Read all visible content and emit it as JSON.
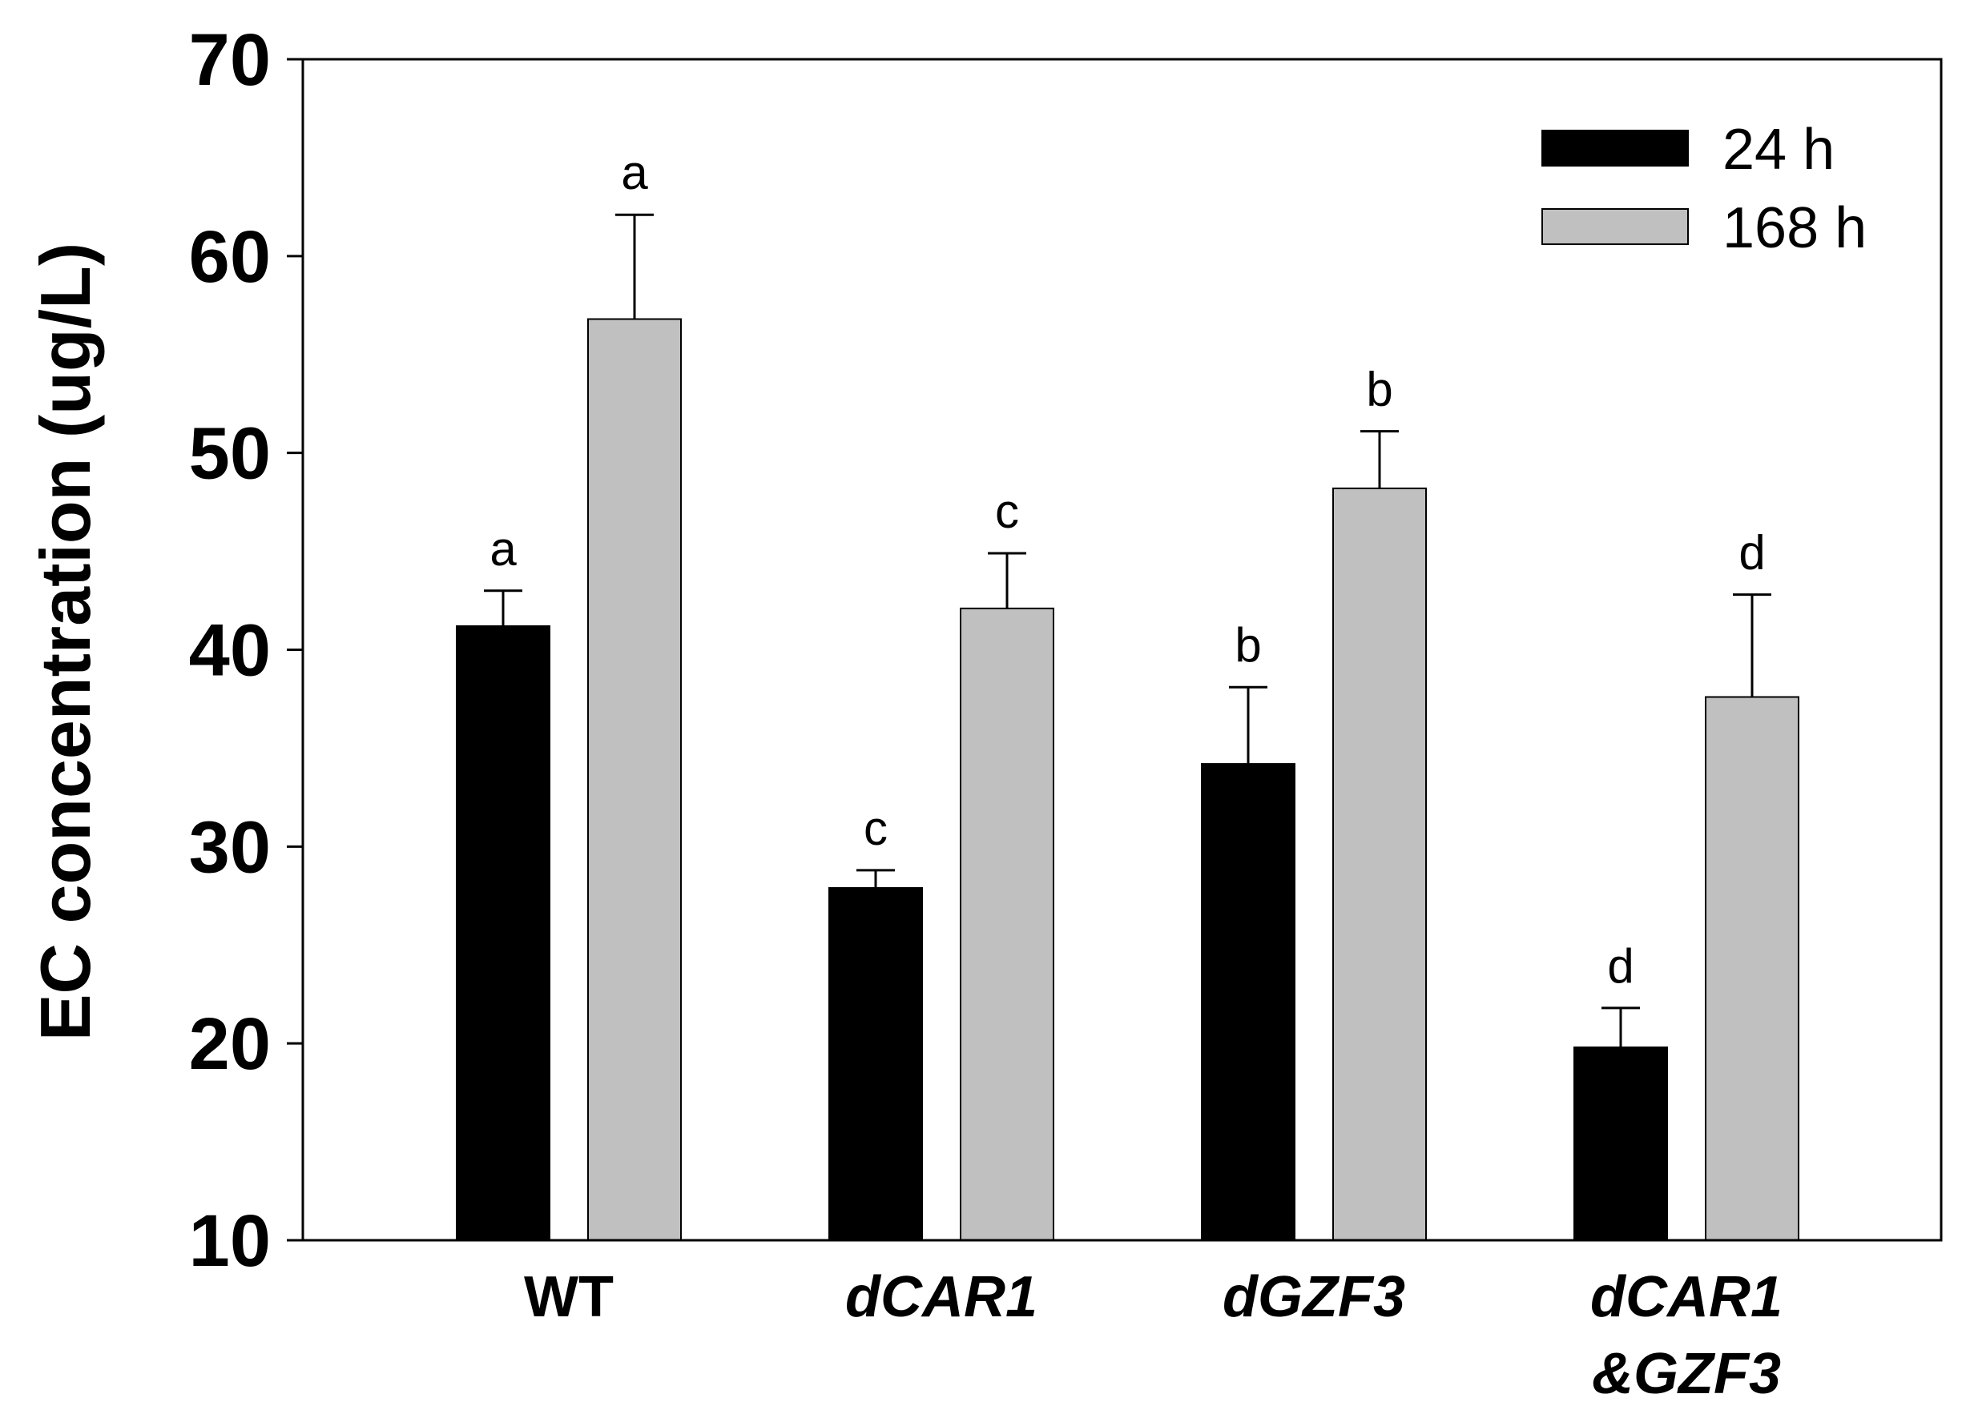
{
  "colors": {
    "series_24h": "#000000",
    "series_168h": "#c0c0c0",
    "axis": "#000000"
  },
  "chart_data": {
    "type": "bar",
    "title": "",
    "xlabel": "",
    "ylabel": "EC concentration (ug/L)",
    "ylim": [
      10,
      70
    ],
    "yticks": [
      "10",
      "20",
      "30",
      "40",
      "50",
      "60",
      "70"
    ],
    "grid": false,
    "legend_position": "top-right",
    "categories": [
      {
        "id": "wt",
        "line1": "WT",
        "line2": "",
        "italic": false
      },
      {
        "id": "dcar1",
        "line1": "dCAR1",
        "line2": "",
        "italic": true
      },
      {
        "id": "dgzf3",
        "line1": "dGZF3",
        "line2": "",
        "italic": true
      },
      {
        "id": "dcar1-gzf3",
        "line1": "dCAR1",
        "line2": "&GZF3",
        "italic": true
      }
    ],
    "series": [
      {
        "name": "24 h",
        "values": [
          41.2,
          27.9,
          34.2,
          19.8
        ],
        "errors": [
          1.8,
          0.9,
          3.9,
          2.0
        ],
        "sig": [
          "a",
          "c",
          "b",
          "d"
        ]
      },
      {
        "name": "168 h",
        "values": [
          56.8,
          42.1,
          48.2,
          37.6
        ],
        "errors": [
          5.3,
          2.8,
          2.9,
          5.2
        ],
        "sig": [
          "a",
          "c",
          "b",
          "d"
        ]
      }
    ]
  }
}
